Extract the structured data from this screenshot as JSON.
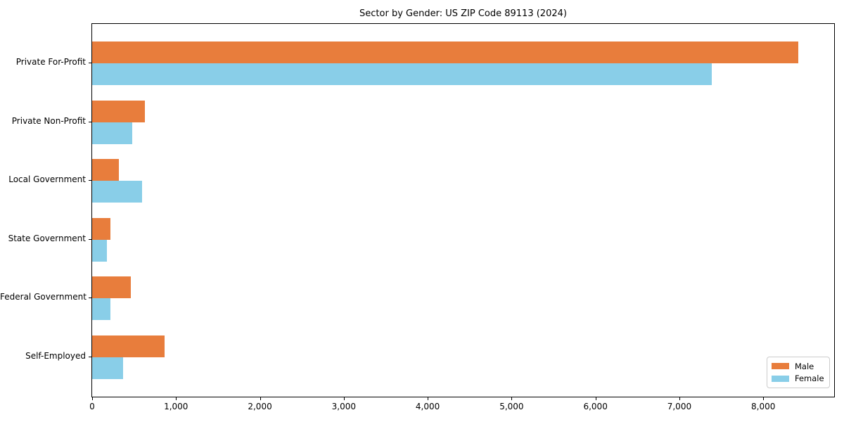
{
  "title": "Sector by Gender: US ZIP Code 89113 (2024)",
  "chart_data": {
    "type": "bar",
    "orientation": "horizontal",
    "title": "Sector by Gender: US ZIP Code 89113 (2024)",
    "xlabel": "",
    "ylabel": "",
    "categories": [
      "Private For-Profit",
      "Private Non-Profit",
      "Local Government",
      "State Government",
      "Federal Government",
      "Self-Employed"
    ],
    "series": [
      {
        "name": "Male",
        "color": "#e87d3c",
        "values": [
          8415,
          630,
          320,
          220,
          465,
          865
        ]
      },
      {
        "name": "Female",
        "color": "#89cee8",
        "values": [
          7385,
          475,
          595,
          175,
          220,
          370
        ]
      }
    ],
    "xlim": [
      0,
      8845
    ],
    "xticks": [
      0,
      1000,
      2000,
      3000,
      4000,
      5000,
      6000,
      7000,
      8000
    ],
    "xtick_labels": [
      "0",
      "1,000",
      "2,000",
      "3,000",
      "4,000",
      "5,000",
      "6,000",
      "7,000",
      "8,000"
    ],
    "grid": false,
    "legend_position": "lower right",
    "frame": true
  }
}
